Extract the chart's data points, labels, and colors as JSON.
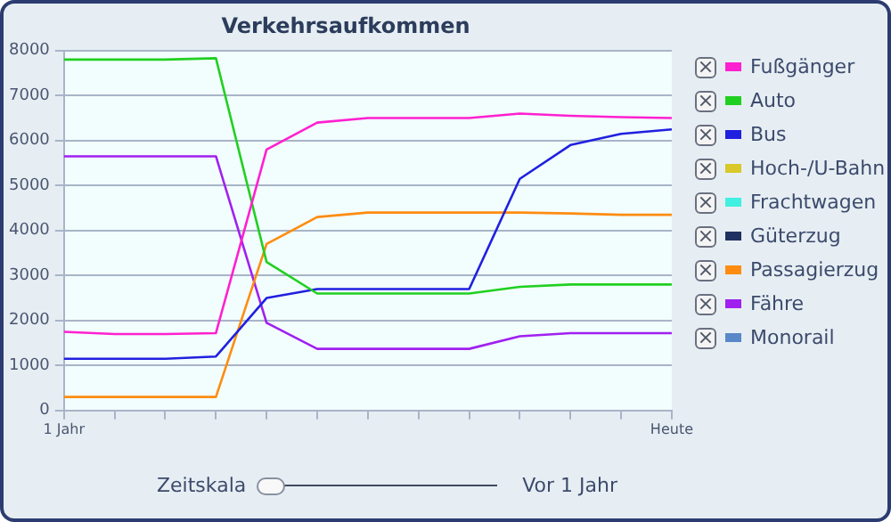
{
  "chart_data": {
    "type": "line",
    "title": "Verkehrsaufkommen",
    "categories": [
      "1 Jahr",
      null,
      null,
      null,
      null,
      null,
      null,
      null,
      null,
      null,
      null,
      null,
      "Heute"
    ],
    "series": [
      {
        "name": "Fußgänger",
        "color": "#ff20d0",
        "values": [
          1750,
          1700,
          1700,
          1720,
          5800,
          6400,
          6500,
          6500,
          6500,
          6600,
          6550,
          6520,
          6500
        ]
      },
      {
        "name": "Auto",
        "color": "#20d020",
        "values": [
          7800,
          7800,
          7800,
          7830,
          3300,
          2600,
          2600,
          2600,
          2600,
          2750,
          2800,
          2800,
          2800
        ]
      },
      {
        "name": "Bus",
        "color": "#2020e0",
        "values": [
          1150,
          1150,
          1150,
          1200,
          2500,
          2700,
          2700,
          2700,
          2700,
          5150,
          5900,
          6150,
          6250
        ]
      },
      {
        "name": "Hoch-/U-Bahn",
        "color": "#d8c828",
        "values": [
          null,
          null,
          null,
          null,
          null,
          null,
          null,
          null,
          null,
          null,
          null,
          null,
          null
        ]
      },
      {
        "name": "Frachtwagen",
        "color": "#40f0e0",
        "values": [
          null,
          null,
          null,
          null,
          null,
          null,
          null,
          null,
          null,
          null,
          null,
          null,
          null
        ]
      },
      {
        "name": "Güterzug",
        "color": "#203060",
        "values": [
          null,
          null,
          null,
          null,
          null,
          null,
          null,
          null,
          null,
          null,
          null,
          null,
          null
        ]
      },
      {
        "name": "Passagierzug",
        "color": "#ff8c10",
        "values": [
          300,
          300,
          300,
          300,
          3700,
          4300,
          4400,
          4400,
          4400,
          4400,
          4380,
          4350,
          4350
        ]
      },
      {
        "name": "Fähre",
        "color": "#a020f0",
        "values": [
          5650,
          5650,
          5650,
          5650,
          1950,
          1370,
          1370,
          1370,
          1370,
          1650,
          1720,
          1720,
          1720
        ]
      },
      {
        "name": "Monorail",
        "color": "#5888c8",
        "values": [
          null,
          null,
          null,
          null,
          null,
          null,
          null,
          null,
          null,
          null,
          null,
          null,
          null
        ]
      }
    ],
    "ylim": [
      0,
      8000
    ],
    "yticks": [
      0,
      1000,
      2000,
      3000,
      4000,
      5000,
      6000,
      7000,
      8000
    ],
    "grid": "y",
    "legend": "right",
    "marker": "none",
    "line_style": "solid",
    "annotations": [
      "Zeitskala",
      "Vor 1 Jahr"
    ]
  }
}
